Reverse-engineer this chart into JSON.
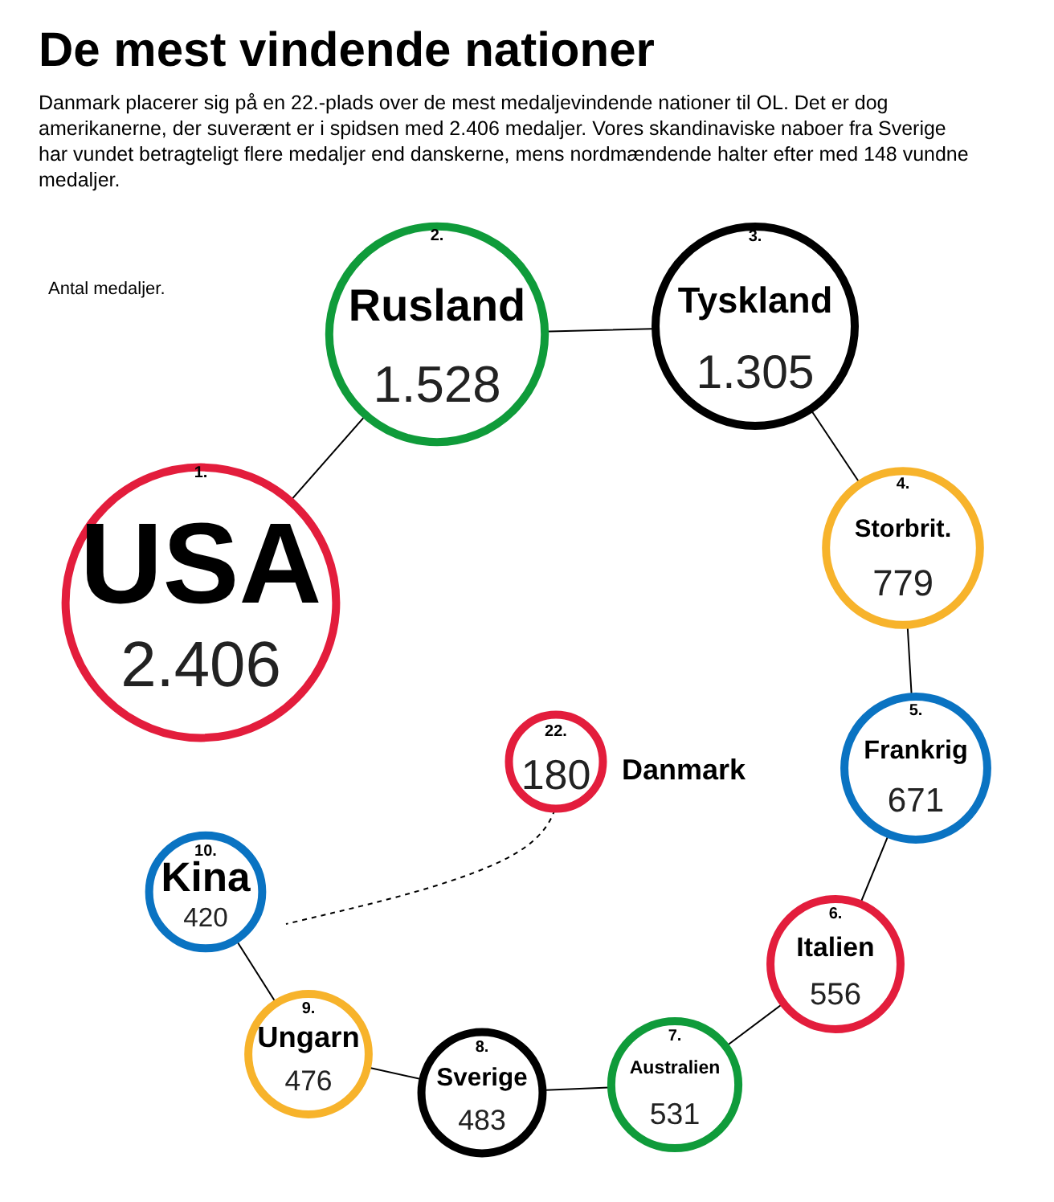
{
  "chart_data": {
    "type": "other",
    "title": "De mest vindende nationer",
    "subtitle": "Danmark placerer sig på en 22.-plads over de mest medaljevindende nationer til OL. Det er dog amerikanerne, der suverænt er i spidsen med 2.406 medaljer. Vores skandinaviske naboer fra Sverige har vundet betragteligt flere medaljer end danskerne, mens nordmændende halter efter med 148 vundne medaljer.",
    "annotations": [
      "Antal medaljer.",
      "1.",
      "2.",
      "3.",
      "4.",
      "5.",
      "6.",
      "7.",
      "8.",
      "9.",
      "10.",
      "22."
    ],
    "categories": [
      "USA",
      "Rusland",
      "Tyskland",
      "Storbrit.",
      "Frankrig",
      "Italien",
      "Australien",
      "Sverige",
      "Ungarn",
      "Kina",
      "Danmark"
    ],
    "values": [
      2406,
      1528,
      1305,
      779,
      671,
      556,
      531,
      483,
      476,
      420,
      180
    ],
    "value_labels": [
      "2.406",
      "1.528",
      "1.305",
      "779",
      "671",
      "556",
      "531",
      "483",
      "476",
      "420",
      "180"
    ],
    "colors": [
      "#e31d3c",
      "#0f9b3a",
      "#000000",
      "#f7b32b",
      "#0a73c2",
      "#e31d3c",
      "#0f9b3a",
      "#000000",
      "#f7b32b",
      "#0a73c2",
      "#e31d3c"
    ]
  }
}
